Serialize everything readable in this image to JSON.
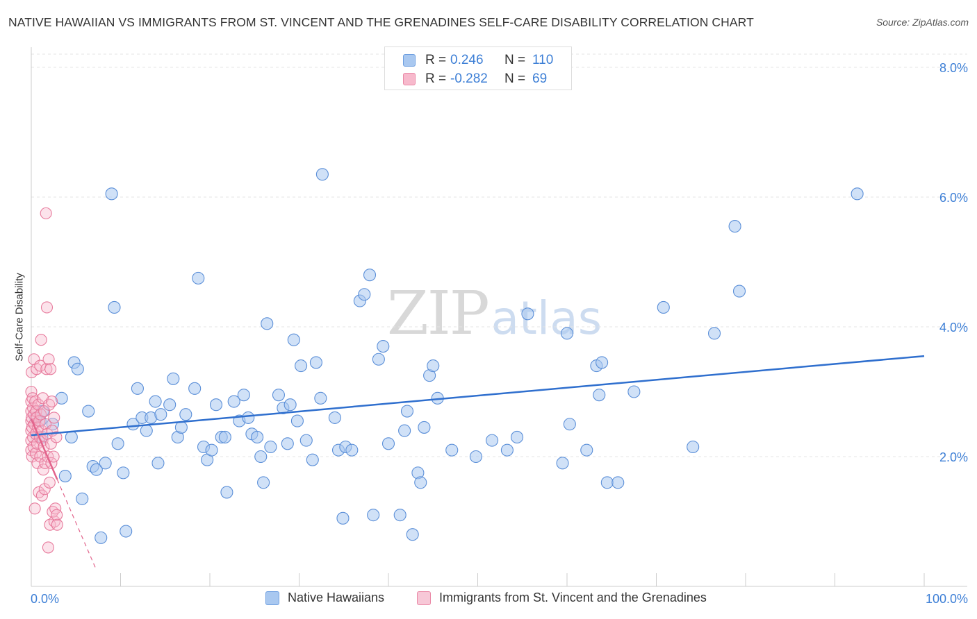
{
  "title": "NATIVE HAWAIIAN VS IMMIGRANTS FROM ST. VINCENT AND THE GRENADINES SELF-CARE DISABILITY CORRELATION CHART",
  "source": "Source: ZipAtlas.com",
  "watermark": {
    "zip": "ZIP",
    "atlas": "atlas"
  },
  "legend_top": {
    "rows": [
      {
        "r_label": "R =",
        "r_value": "0.246",
        "n_label": "N =",
        "n_value": "110",
        "color": "#a9c8f0",
        "border": "#6e9fe0"
      },
      {
        "r_label": "R =",
        "r_value": "-0.282",
        "n_label": "N =",
        "n_value": "69",
        "color": "#f7b9cc",
        "border": "#ea88a6"
      }
    ]
  },
  "legend_bottom": {
    "items": [
      {
        "label": "Native Hawaiians",
        "color": "#a9c8f0",
        "border": "#6e9fe0"
      },
      {
        "label": "Immigrants from St. Vincent and the Grenadines",
        "color": "#f7c8d7",
        "border": "#ea88a6"
      }
    ]
  },
  "chart_data": {
    "type": "scatter",
    "title": "NATIVE HAWAIIAN VS IMMIGRANTS FROM ST. VINCENT AND THE GRENADINES SELF-CARE DISABILITY CORRELATION CHART",
    "xlabel": "",
    "ylabel": "Self-Care Disability",
    "xlim": [
      0,
      100
    ],
    "ylim": [
      0,
      8.0
    ],
    "x_tick_labels": [
      "0.0%",
      "100.0%"
    ],
    "y_ticks": [
      2.0,
      4.0,
      6.0,
      8.0
    ],
    "y_tick_labels": [
      "2.0%",
      "4.0%",
      "6.0%",
      "8.0%"
    ],
    "grid": true,
    "colors": {
      "blue_fill": "#a9c8f0",
      "blue_stroke": "#5b8fd8",
      "blue_line": "#2f6fce",
      "pink_fill": "#f7b9cc",
      "pink_stroke": "#e77a9c",
      "pink_line": "#e2648c",
      "axis_text": "#3d7fd6"
    },
    "series": [
      {
        "name": "Native Hawaiians",
        "r": 0.246,
        "n": 110,
        "trend": {
          "x0": 0.0,
          "y0": 2.33,
          "x1": 100.0,
          "y1": 3.55
        },
        "points": [
          [
            0.5,
            2.6
          ],
          [
            1.0,
            2.55
          ],
          [
            1.2,
            2.3
          ],
          [
            1.3,
            2.7
          ],
          [
            2.4,
            2.5
          ],
          [
            3.4,
            2.9
          ],
          [
            3.8,
            1.7
          ],
          [
            4.5,
            2.3
          ],
          [
            4.8,
            3.45
          ],
          [
            5.2,
            3.35
          ],
          [
            5.7,
            1.35
          ],
          [
            6.4,
            2.7
          ],
          [
            6.9,
            1.85
          ],
          [
            7.3,
            1.8
          ],
          [
            7.8,
            0.75
          ],
          [
            8.3,
            1.9
          ],
          [
            9.0,
            6.05
          ],
          [
            9.3,
            4.3
          ],
          [
            9.7,
            2.2
          ],
          [
            10.3,
            1.75
          ],
          [
            10.6,
            0.85
          ],
          [
            11.4,
            2.5
          ],
          [
            11.9,
            3.05
          ],
          [
            12.4,
            2.6
          ],
          [
            12.9,
            2.4
          ],
          [
            13.4,
            2.6
          ],
          [
            13.9,
            2.85
          ],
          [
            14.2,
            1.9
          ],
          [
            14.5,
            2.65
          ],
          [
            15.5,
            2.8
          ],
          [
            15.9,
            3.2
          ],
          [
            16.4,
            2.3
          ],
          [
            16.8,
            2.45
          ],
          [
            17.3,
            2.65
          ],
          [
            18.3,
            3.05
          ],
          [
            18.7,
            4.75
          ],
          [
            19.3,
            2.15
          ],
          [
            19.7,
            1.95
          ],
          [
            20.2,
            2.1
          ],
          [
            20.7,
            2.8
          ],
          [
            21.3,
            2.3
          ],
          [
            21.7,
            2.3
          ],
          [
            21.9,
            1.45
          ],
          [
            22.7,
            2.85
          ],
          [
            23.3,
            2.55
          ],
          [
            23.8,
            2.95
          ],
          [
            24.3,
            2.6
          ],
          [
            24.7,
            2.35
          ],
          [
            25.3,
            2.3
          ],
          [
            25.7,
            2.0
          ],
          [
            26.0,
            1.6
          ],
          [
            26.4,
            4.05
          ],
          [
            26.8,
            2.15
          ],
          [
            27.7,
            2.95
          ],
          [
            28.2,
            2.75
          ],
          [
            28.7,
            2.2
          ],
          [
            29.0,
            2.8
          ],
          [
            29.4,
            3.8
          ],
          [
            29.8,
            2.55
          ],
          [
            30.2,
            3.4
          ],
          [
            30.8,
            2.25
          ],
          [
            31.5,
            1.95
          ],
          [
            31.9,
            3.45
          ],
          [
            32.4,
            2.9
          ],
          [
            32.6,
            6.35
          ],
          [
            34.0,
            2.6
          ],
          [
            34.4,
            2.1
          ],
          [
            34.9,
            1.05
          ],
          [
            35.2,
            2.15
          ],
          [
            35.9,
            2.1
          ],
          [
            36.8,
            4.4
          ],
          [
            37.3,
            4.5
          ],
          [
            37.9,
            4.8
          ],
          [
            38.3,
            1.1
          ],
          [
            38.9,
            3.5
          ],
          [
            39.4,
            3.7
          ],
          [
            40.0,
            2.2
          ],
          [
            41.3,
            1.1
          ],
          [
            41.8,
            2.4
          ],
          [
            42.1,
            2.7
          ],
          [
            42.7,
            0.8
          ],
          [
            43.3,
            1.75
          ],
          [
            43.6,
            1.6
          ],
          [
            44.0,
            2.45
          ],
          [
            44.6,
            3.25
          ],
          [
            45.0,
            3.4
          ],
          [
            45.5,
            2.9
          ],
          [
            47.1,
            2.1
          ],
          [
            49.8,
            2.0
          ],
          [
            51.6,
            2.25
          ],
          [
            53.3,
            2.1
          ],
          [
            54.4,
            2.3
          ],
          [
            55.6,
            4.2
          ],
          [
            59.5,
            1.9
          ],
          [
            60.0,
            3.9
          ],
          [
            60.3,
            2.5
          ],
          [
            62.2,
            2.1
          ],
          [
            63.3,
            3.4
          ],
          [
            63.6,
            2.95
          ],
          [
            63.9,
            3.45
          ],
          [
            64.5,
            1.6
          ],
          [
            65.7,
            1.6
          ],
          [
            67.5,
            3.0
          ],
          [
            70.8,
            4.3
          ],
          [
            74.1,
            2.15
          ],
          [
            76.5,
            3.9
          ],
          [
            78.8,
            5.55
          ],
          [
            79.3,
            4.55
          ],
          [
            92.5,
            6.05
          ]
        ]
      },
      {
        "name": "Immigrants from St. Vincent and the Grenadines",
        "r": -0.282,
        "n": 69,
        "trend": {
          "x0": 0.0,
          "y0": 2.58,
          "x1": 2.9,
          "y1": 1.65
        },
        "trend_extension": {
          "x0": 2.9,
          "y0": 1.65,
          "x1": 7.3,
          "y1": 0.25
        },
        "points": [
          [
            0.0,
            3.0
          ],
          [
            0.0,
            2.85
          ],
          [
            0.0,
            2.7
          ],
          [
            0.0,
            2.55
          ],
          [
            0.0,
            2.4
          ],
          [
            0.0,
            2.25
          ],
          [
            0.0,
            2.1
          ],
          [
            0.05,
            3.3
          ],
          [
            0.05,
            2.6
          ],
          [
            0.1,
            2.45
          ],
          [
            0.1,
            2.0
          ],
          [
            0.15,
            2.9
          ],
          [
            0.2,
            2.75
          ],
          [
            0.2,
            2.3
          ],
          [
            0.25,
            2.15
          ],
          [
            0.3,
            3.5
          ],
          [
            0.3,
            2.65
          ],
          [
            0.35,
            2.5
          ],
          [
            0.4,
            1.2
          ],
          [
            0.45,
            2.85
          ],
          [
            0.5,
            2.35
          ],
          [
            0.5,
            2.05
          ],
          [
            0.55,
            2.7
          ],
          [
            0.6,
            3.35
          ],
          [
            0.6,
            2.6
          ],
          [
            0.65,
            2.2
          ],
          [
            0.7,
            1.9
          ],
          [
            0.75,
            2.45
          ],
          [
            0.8,
            2.8
          ],
          [
            0.85,
            1.45
          ],
          [
            0.9,
            2.55
          ],
          [
            0.95,
            2.3
          ],
          [
            1.0,
            3.4
          ],
          [
            1.0,
            2.0
          ],
          [
            1.05,
            2.65
          ],
          [
            1.1,
            3.8
          ],
          [
            1.15,
            2.4
          ],
          [
            1.2,
            1.4
          ],
          [
            1.25,
            2.25
          ],
          [
            1.3,
            2.9
          ],
          [
            1.35,
            1.8
          ],
          [
            1.4,
            2.15
          ],
          [
            1.45,
            2.7
          ],
          [
            1.5,
            1.5
          ],
          [
            1.55,
            1.9
          ],
          [
            1.6,
            2.5
          ],
          [
            1.65,
            5.75
          ],
          [
            1.7,
            3.35
          ],
          [
            1.75,
            4.3
          ],
          [
            1.8,
            2.35
          ],
          [
            1.85,
            2.0
          ],
          [
            1.9,
            0.6
          ],
          [
            1.95,
            3.5
          ],
          [
            2.0,
            2.8
          ],
          [
            2.05,
            1.6
          ],
          [
            2.1,
            0.95
          ],
          [
            2.15,
            3.35
          ],
          [
            2.2,
            2.2
          ],
          [
            2.25,
            1.9
          ],
          [
            2.3,
            2.85
          ],
          [
            2.35,
            2.4
          ],
          [
            2.4,
            1.15
          ],
          [
            2.5,
            2.0
          ],
          [
            2.55,
            2.6
          ],
          [
            2.6,
            1.0
          ],
          [
            2.7,
            1.2
          ],
          [
            2.8,
            2.3
          ],
          [
            2.85,
            1.1
          ],
          [
            2.9,
            0.95
          ]
        ]
      }
    ]
  }
}
